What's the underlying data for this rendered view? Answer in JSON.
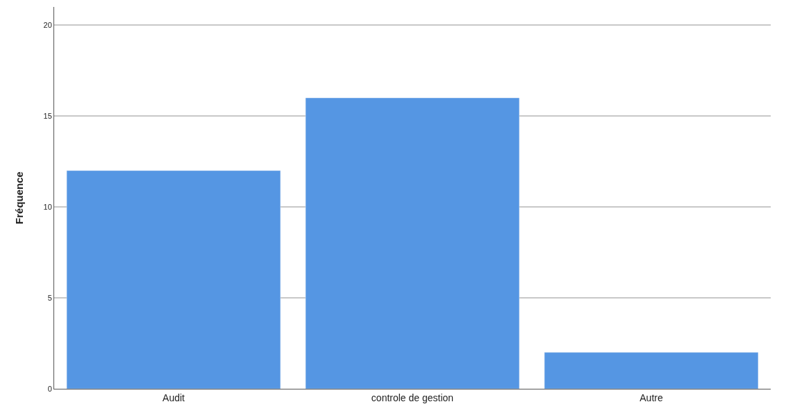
{
  "chart_data": {
    "type": "bar",
    "ylabel": "Fréquence",
    "categories": [
      "Audit",
      "controle de gestion",
      "Autre"
    ],
    "values": [
      12,
      16,
      2
    ],
    "color": "#5596e3",
    "ylim": [
      0,
      21
    ],
    "yticks": [
      0,
      5,
      10,
      15,
      20
    ],
    "grid": "y"
  }
}
